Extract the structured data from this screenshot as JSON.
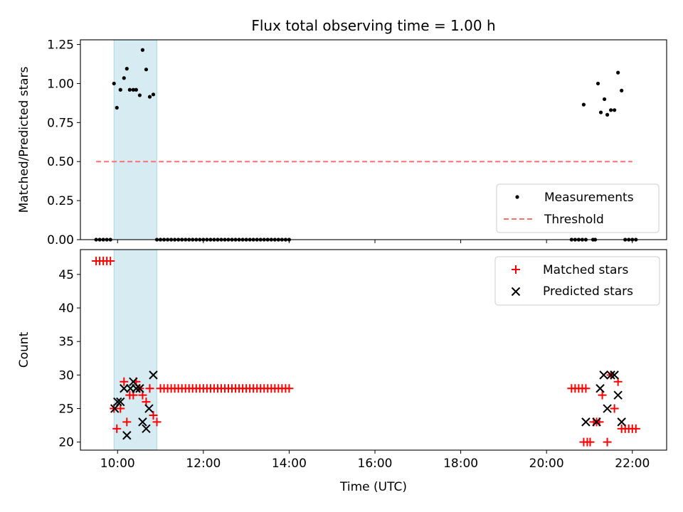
{
  "chart_data": [
    {
      "type": "scatter",
      "title": "Flux total observing time = 1.00 h",
      "xlabel": "",
      "ylabel": "Matched/Predicted stars",
      "xlim": [
        "09:08",
        "22:48"
      ],
      "ylim": [
        0,
        1.28
      ],
      "yticks": [
        "0.00",
        "0.25",
        "0.50",
        "0.75",
        "1.00",
        "1.25"
      ],
      "highlight_span": [
        "09:55",
        "10:55"
      ],
      "highlight_color": "#add8e6",
      "threshold": {
        "value": 0.5,
        "x_range": [
          "09:30",
          "22:00"
        ],
        "color": "#ff6f6f",
        "style": "dashed"
      },
      "legend_position": "lower right",
      "series": [
        {
          "name": "Measurements",
          "marker": "dot",
          "color": "#000000",
          "points": [
            [
              "09:30",
              0
            ],
            [
              "09:35",
              0
            ],
            [
              "09:40",
              0
            ],
            [
              "09:45",
              0
            ],
            [
              "09:50",
              0
            ],
            [
              "09:55",
              1.0
            ],
            [
              "09:59",
              0.845
            ],
            [
              "10:04",
              0.96
            ],
            [
              "10:09",
              1.035
            ],
            [
              "10:13",
              1.095
            ],
            [
              "10:17",
              0.96
            ],
            [
              "10:22",
              0.96
            ],
            [
              "10:26",
              0.96
            ],
            [
              "10:31",
              0.925
            ],
            [
              "10:35",
              1.215
            ],
            [
              "10:40",
              1.09
            ],
            [
              "10:45",
              0.915
            ],
            [
              "10:50",
              0.93
            ],
            [
              "10:55",
              0
            ],
            [
              "11:00",
              0
            ],
            [
              "11:05",
              0
            ],
            [
              "11:10",
              0
            ],
            [
              "11:15",
              0
            ],
            [
              "11:20",
              0
            ],
            [
              "11:25",
              0
            ],
            [
              "11:30",
              0
            ],
            [
              "11:35",
              0
            ],
            [
              "11:40",
              0
            ],
            [
              "11:45",
              0
            ],
            [
              "11:50",
              0
            ],
            [
              "11:55",
              0
            ],
            [
              "12:00",
              0
            ],
            [
              "12:05",
              0
            ],
            [
              "12:10",
              0
            ],
            [
              "12:15",
              0
            ],
            [
              "12:20",
              0
            ],
            [
              "12:25",
              0
            ],
            [
              "12:30",
              0
            ],
            [
              "12:35",
              0
            ],
            [
              "12:40",
              0
            ],
            [
              "12:45",
              0
            ],
            [
              "12:50",
              0
            ],
            [
              "12:55",
              0
            ],
            [
              "13:00",
              0
            ],
            [
              "13:05",
              0
            ],
            [
              "13:10",
              0
            ],
            [
              "13:15",
              0
            ],
            [
              "13:20",
              0
            ],
            [
              "13:25",
              0
            ],
            [
              "13:30",
              0
            ],
            [
              "13:35",
              0
            ],
            [
              "13:40",
              0
            ],
            [
              "13:45",
              0
            ],
            [
              "13:50",
              0
            ],
            [
              "13:55",
              0
            ],
            [
              "14:00",
              0
            ],
            [
              "20:35",
              0
            ],
            [
              "20:40",
              0
            ],
            [
              "20:45",
              0
            ],
            [
              "20:50",
              0
            ],
            [
              "20:55",
              0
            ],
            [
              "20:52",
              0.865
            ],
            [
              "21:05",
              0
            ],
            [
              "21:08",
              0
            ],
            [
              "21:12",
              1.0
            ],
            [
              "21:16",
              0.815
            ],
            [
              "21:21",
              0.9
            ],
            [
              "21:25",
              0.8
            ],
            [
              "21:30",
              0.83
            ],
            [
              "21:35",
              0.83
            ],
            [
              "21:40",
              1.07
            ],
            [
              "21:45",
              0.955
            ],
            [
              "21:50",
              0
            ],
            [
              "21:55",
              0
            ],
            [
              "22:00",
              0
            ],
            [
              "22:05",
              0
            ]
          ]
        }
      ],
      "legend": [
        "Measurements",
        "Threshold"
      ]
    },
    {
      "type": "scatter",
      "title": "",
      "xlabel": "Time (UTC)",
      "ylabel": "Count",
      "xlim": [
        "09:08",
        "22:48"
      ],
      "ylim": [
        18.8,
        48.7
      ],
      "yticks": [
        "20",
        "25",
        "30",
        "35",
        "40",
        "45"
      ],
      "xticks": [
        "10:00",
        "12:00",
        "14:00",
        "16:00",
        "18:00",
        "20:00",
        "22:00"
      ],
      "highlight_span": [
        "09:55",
        "10:55"
      ],
      "legend_position": "upper right",
      "series": [
        {
          "name": "Matched stars",
          "marker": "plus",
          "color": "#ff0000",
          "points": [
            [
              "09:30",
              47
            ],
            [
              "09:35",
              47
            ],
            [
              "09:40",
              47
            ],
            [
              "09:45",
              47
            ],
            [
              "09:50",
              47
            ],
            [
              "09:55",
              25
            ],
            [
              "09:59",
              22
            ],
            [
              "10:04",
              25
            ],
            [
              "10:09",
              29
            ],
            [
              "10:13",
              23
            ],
            [
              "10:17",
              27
            ],
            [
              "10:22",
              27
            ],
            [
              "10:26",
              29
            ],
            [
              "10:31",
              28
            ],
            [
              "10:35",
              27
            ],
            [
              "10:40",
              26
            ],
            [
              "10:45",
              28
            ],
            [
              "10:50",
              24
            ],
            [
              "10:55",
              23
            ],
            [
              "11:00",
              28
            ],
            [
              "11:05",
              28
            ],
            [
              "11:10",
              28
            ],
            [
              "11:15",
              28
            ],
            [
              "11:20",
              28
            ],
            [
              "11:25",
              28
            ],
            [
              "11:30",
              28
            ],
            [
              "11:35",
              28
            ],
            [
              "11:40",
              28
            ],
            [
              "11:45",
              28
            ],
            [
              "11:50",
              28
            ],
            [
              "11:55",
              28
            ],
            [
              "12:00",
              28
            ],
            [
              "12:05",
              28
            ],
            [
              "12:10",
              28
            ],
            [
              "12:15",
              28
            ],
            [
              "12:20",
              28
            ],
            [
              "12:25",
              28
            ],
            [
              "12:30",
              28
            ],
            [
              "12:35",
              28
            ],
            [
              "12:40",
              28
            ],
            [
              "12:45",
              28
            ],
            [
              "12:50",
              28
            ],
            [
              "12:55",
              28
            ],
            [
              "13:00",
              28
            ],
            [
              "13:05",
              28
            ],
            [
              "13:10",
              28
            ],
            [
              "13:15",
              28
            ],
            [
              "13:20",
              28
            ],
            [
              "13:25",
              28
            ],
            [
              "13:30",
              28
            ],
            [
              "13:35",
              28
            ],
            [
              "13:40",
              28
            ],
            [
              "13:45",
              28
            ],
            [
              "13:50",
              28
            ],
            [
              "13:55",
              28
            ],
            [
              "14:00",
              28
            ],
            [
              "20:35",
              28
            ],
            [
              "20:40",
              28
            ],
            [
              "20:45",
              28
            ],
            [
              "20:50",
              28
            ],
            [
              "20:55",
              28
            ],
            [
              "20:52",
              20
            ],
            [
              "20:57",
              20
            ],
            [
              "21:01",
              20
            ],
            [
              "21:06",
              23
            ],
            [
              "21:10",
              23
            ],
            [
              "21:14",
              23
            ],
            [
              "21:18",
              27
            ],
            [
              "21:25",
              20
            ],
            [
              "21:30",
              30
            ],
            [
              "21:35",
              25
            ],
            [
              "21:40",
              29
            ],
            [
              "21:45",
              22
            ],
            [
              "21:50",
              22
            ],
            [
              "21:55",
              22
            ],
            [
              "22:00",
              22
            ],
            [
              "22:05",
              22
            ]
          ]
        },
        {
          "name": "Predicted stars",
          "marker": "x",
          "color": "#000000",
          "points": [
            [
              "09:56",
              25
            ],
            [
              "10:00",
              26
            ],
            [
              "10:04",
              26
            ],
            [
              "10:09",
              28
            ],
            [
              "10:13",
              21
            ],
            [
              "10:18",
              28
            ],
            [
              "10:22",
              29
            ],
            [
              "10:26",
              28
            ],
            [
              "10:31",
              28
            ],
            [
              "10:35",
              23
            ],
            [
              "10:40",
              22
            ],
            [
              "10:44",
              25
            ],
            [
              "10:50",
              30
            ],
            [
              "20:55",
              23
            ],
            [
              "21:10",
              23
            ],
            [
              "21:15",
              28
            ],
            [
              "21:20",
              30
            ],
            [
              "21:25",
              25
            ],
            [
              "21:30",
              30
            ],
            [
              "21:35",
              30
            ],
            [
              "21:40",
              27
            ],
            [
              "21:45",
              23
            ]
          ]
        }
      ],
      "legend": [
        "Matched stars",
        "Predicted stars"
      ]
    }
  ]
}
